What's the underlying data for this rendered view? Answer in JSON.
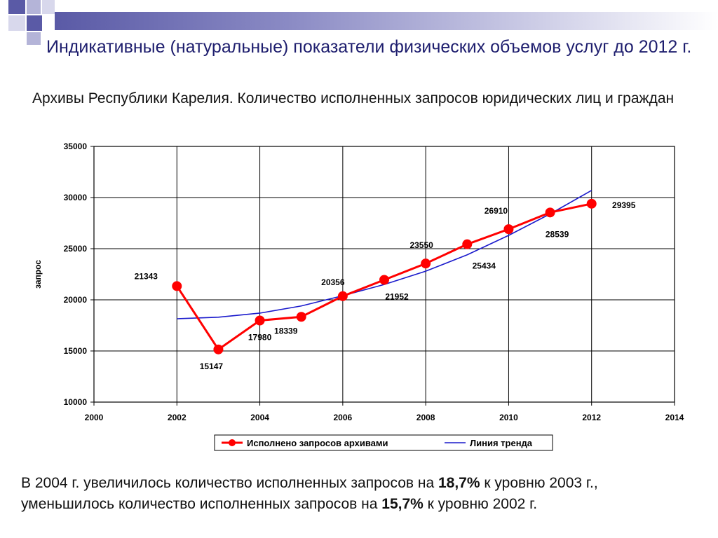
{
  "slide": {
    "title": "Индикативные (натуральные) показатели физических объемов услуг до 2012 г.",
    "subtitle": "Архивы Республики Карелия. Количество исполненных запросов юридических лиц и граждан",
    "note": {
      "part1": "В 2004 г. увеличилось количество  исполненных запросов на ",
      "bold1": "18,7%",
      "part2": " к уровню 2003 г.,  уменьшилось количество исполненных запросов на ",
      "bold2": "15,7%",
      "part3": " к уровню 2002 г."
    }
  },
  "colors": {
    "series_line": "#ff0000",
    "series_marker": "#ff0000",
    "trend_line": "#1a1acc",
    "grid": "#000000",
    "title": "#1e1e6e"
  },
  "chart_data": {
    "type": "line",
    "ylabel": "запрос",
    "xlim": [
      2000,
      2014
    ],
    "ylim": [
      10000,
      35000
    ],
    "x_ticks": [
      "2000",
      "2002",
      "2004",
      "2006",
      "2008",
      "2010",
      "2012",
      "2014"
    ],
    "y_ticks": [
      "10000",
      "15000",
      "20000",
      "25000",
      "30000",
      "35000"
    ],
    "grid": true,
    "legend_position": "bottom",
    "series": [
      {
        "name": "Исполнено запросов архивами",
        "x": [
          2002,
          2003,
          2004,
          2005,
          2006,
          2007,
          2008,
          2009,
          2010,
          2011,
          2012
        ],
        "values": [
          21343,
          15147,
          17980,
          18339,
          20356,
          21952,
          23550,
          25434,
          26910,
          28539,
          29395
        ],
        "labels": [
          "21343",
          "15147",
          "17980",
          "18339",
          "20356",
          "21952",
          "23550",
          "25434",
          "26910",
          "28539",
          "29395"
        ]
      },
      {
        "name": "Линия тренда",
        "x": [
          2002,
          2003,
          2004,
          2005,
          2006,
          2007,
          2008,
          2009,
          2010,
          2011,
          2012
        ],
        "values": [
          18150,
          18300,
          18700,
          19400,
          20400,
          21500,
          22800,
          24400,
          26300,
          28400,
          30700
        ]
      }
    ]
  }
}
